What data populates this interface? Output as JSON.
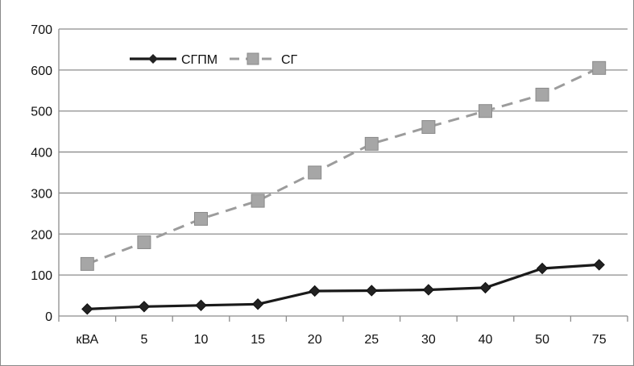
{
  "chart_data": {
    "type": "line",
    "categories": [
      "кВА",
      "5",
      "10",
      "15",
      "20",
      "25",
      "30",
      "40",
      "50",
      "75"
    ],
    "series": [
      {
        "name": "СГПМ",
        "values": [
          17,
          23,
          26,
          29,
          61,
          62,
          64,
          69,
          116,
          125
        ],
        "color": "#1a1a1a",
        "marker": "diamond",
        "line_style": "solid"
      },
      {
        "name": "СГ",
        "values": [
          127,
          180,
          237,
          281,
          350,
          420,
          461,
          500,
          540,
          605
        ],
        "color": "#9c9c9c",
        "marker": "square",
        "line_style": "dashed"
      }
    ],
    "ylim": [
      0,
      700
    ],
    "yticks": [
      0,
      100,
      200,
      300,
      400,
      500,
      600,
      700
    ],
    "grid": true,
    "legend_position": "top-left",
    "title": "",
    "xlabel": "",
    "ylabel": ""
  }
}
